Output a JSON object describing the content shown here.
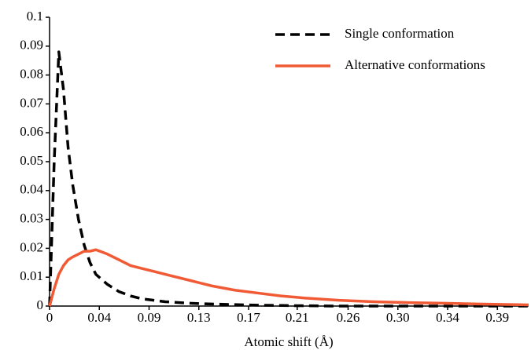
{
  "chart_data": {
    "type": "line",
    "x_label": "Atomic shift (Å)",
    "x": [
      0,
      0.004,
      0.008,
      0.012,
      0.016,
      0.02,
      0.025,
      0.03,
      0.035,
      0.04,
      0.05,
      0.06,
      0.07,
      0.08,
      0.09,
      0.1,
      0.12,
      0.14,
      0.16,
      0.18,
      0.2,
      0.22,
      0.25,
      0.28,
      0.31,
      0.34,
      0.37,
      0.4,
      0.414
    ],
    "series": [
      {
        "name": "Single conformation",
        "color": "#000000",
        "dash": true,
        "values": [
          0,
          0.05,
          0.088,
          0.075,
          0.055,
          0.042,
          0.03,
          0.021,
          0.015,
          0.011,
          0.0075,
          0.005,
          0.0035,
          0.0025,
          0.002,
          0.0015,
          0.001,
          0.0007,
          0.0005,
          0.0003,
          0.0002,
          0.0001,
          0,
          0,
          0,
          0,
          0,
          0,
          0
        ]
      },
      {
        "name": "Alternative conformations",
        "color": "#f05a35",
        "dash": false,
        "values": [
          0,
          0.006,
          0.011,
          0.014,
          0.016,
          0.017,
          0.018,
          0.019,
          0.019,
          0.0195,
          0.018,
          0.016,
          0.014,
          0.013,
          0.012,
          0.011,
          0.009,
          0.007,
          0.0055,
          0.0045,
          0.0035,
          0.0028,
          0.002,
          0.0015,
          0.0012,
          0.001,
          0.0007,
          0.0005,
          0.0004
        ]
      }
    ],
    "xlim": [
      0,
      0.414
    ],
    "xticks": [
      0,
      {
        "value": 0.043,
        "label": "0.04"
      },
      {
        "value": 0.086,
        "label": "0.09"
      },
      {
        "value": 0.129,
        "label": "0.13"
      },
      {
        "value": 0.172,
        "label": "0.17"
      },
      {
        "value": 0.214,
        "label": "0.21"
      },
      {
        "value": 0.258,
        "label": "0.26"
      },
      {
        "value": 0.301,
        "label": "0.30"
      },
      {
        "value": 0.344,
        "label": "0.34"
      },
      {
        "value": 0.387,
        "label": "0.39"
      }
    ],
    "ylim": [
      0,
      0.1
    ],
    "yticks": [
      0,
      0.01,
      0.02,
      0.03,
      0.04,
      0.05,
      0.06,
      0.07,
      0.08,
      0.09,
      0.1
    ],
    "legend_position": "top-right",
    "grid": false
  }
}
